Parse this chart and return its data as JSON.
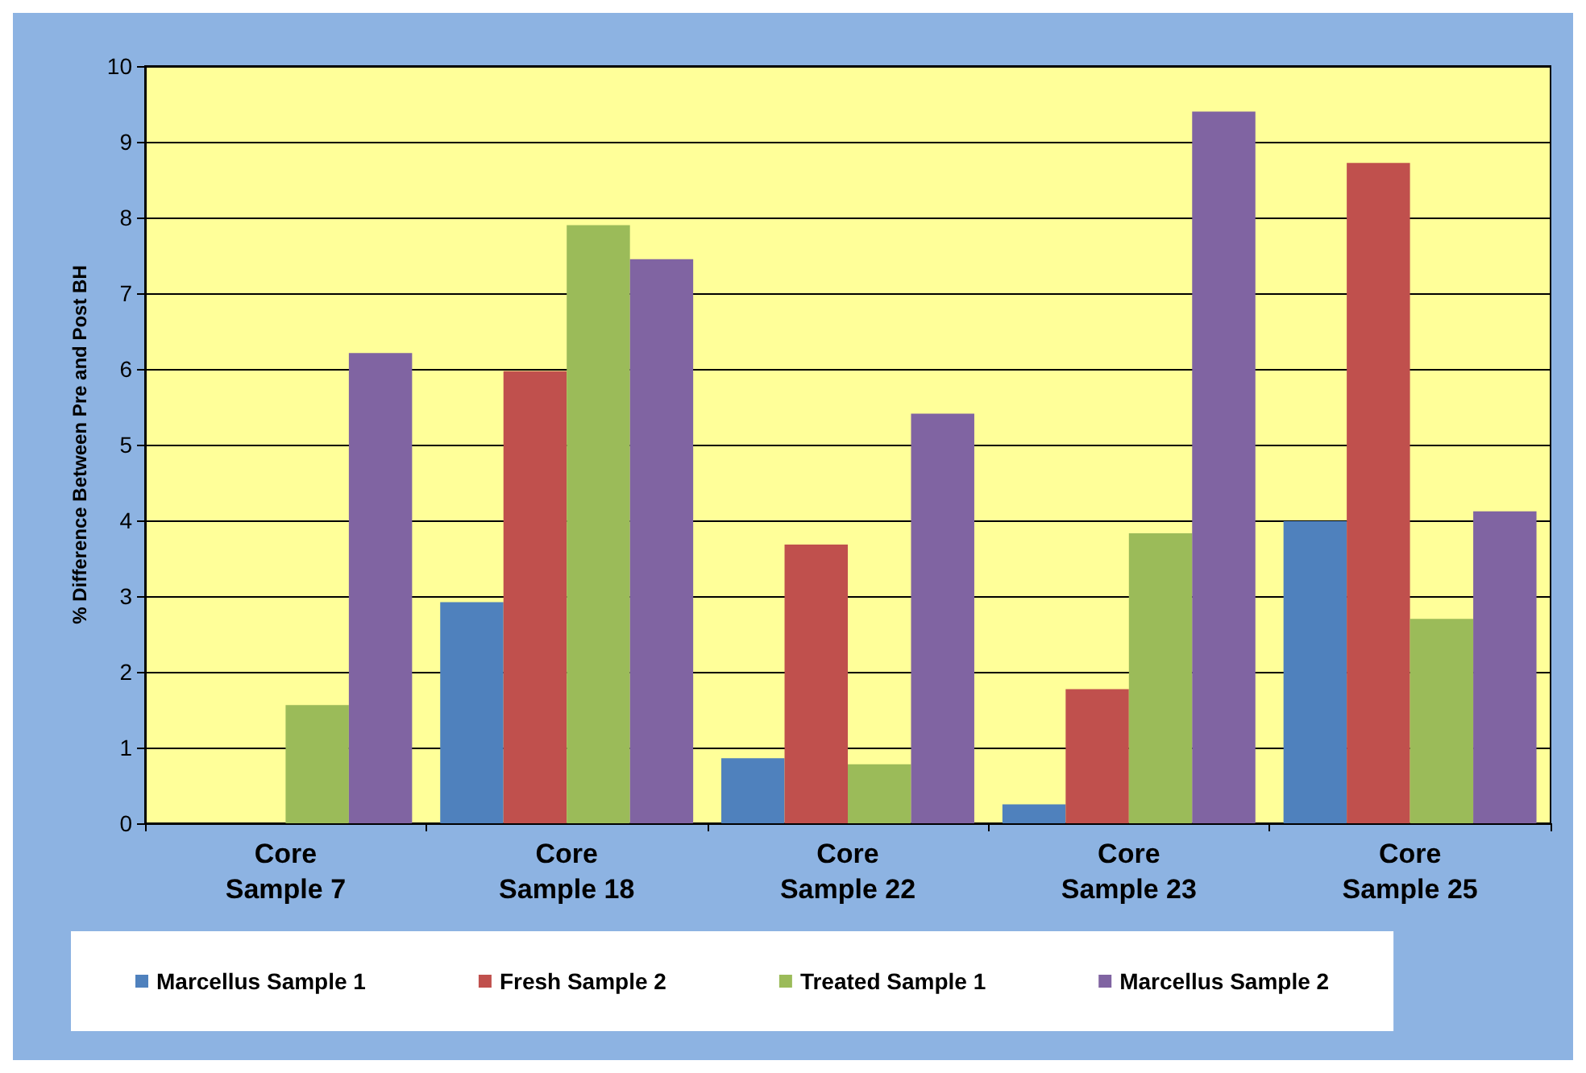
{
  "chart_data": {
    "type": "bar",
    "ylabel": "% Difference Between Pre and Post BH",
    "categories": [
      "Core Sample 7",
      "Core Sample 18",
      "Core Sample 22",
      "Core Sample 23",
      "Core Sample 25"
    ],
    "series": [
      {
        "name": "Marcellus Sample 1",
        "color": "#4f81bd",
        "values": [
          null,
          2.92,
          0.86,
          0.25,
          3.99
        ]
      },
      {
        "name": "Fresh Sample 2",
        "color": "#c0504d",
        "values": [
          null,
          5.97,
          3.68,
          1.77,
          8.72
        ]
      },
      {
        "name": "Treated Sample 1",
        "color": "#9bbb59",
        "values": [
          1.56,
          7.9,
          0.78,
          3.83,
          2.7
        ]
      },
      {
        "name": "Marcellus Sample 2",
        "color": "#8064a2",
        "values": [
          6.21,
          7.45,
          5.41,
          9.4,
          4.12
        ]
      }
    ],
    "ylim": [
      0,
      10
    ],
    "yticks": [
      0,
      1,
      2,
      3,
      4,
      5,
      6,
      7,
      8,
      9,
      10
    ],
    "grid": "y",
    "legend": "bottom"
  }
}
